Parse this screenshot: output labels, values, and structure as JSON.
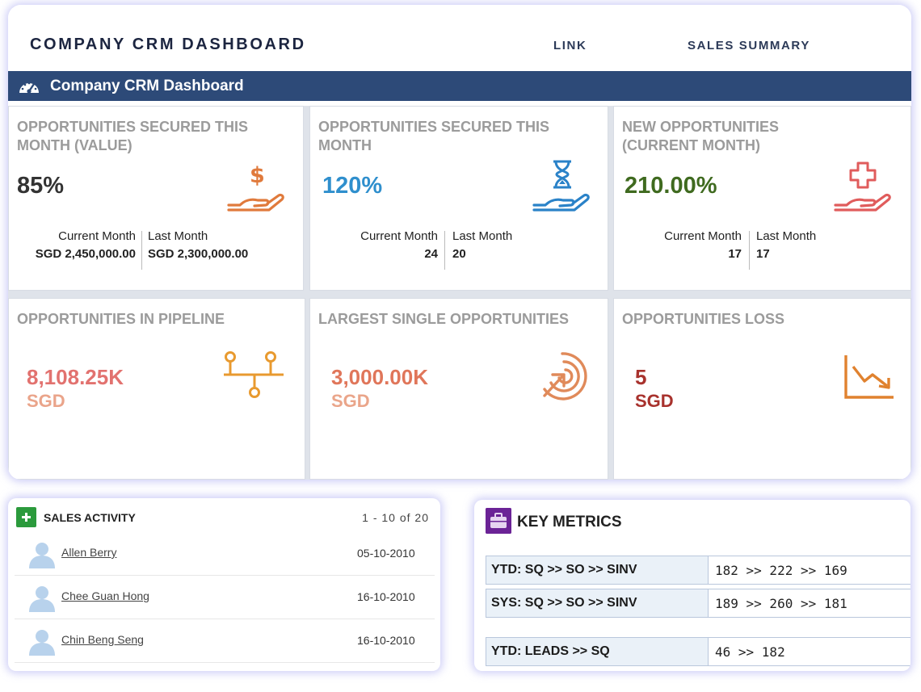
{
  "header": {
    "brand": "COMPANY CRM DASHBOARD",
    "nav": [
      "LINK",
      "SALES SUMMARY"
    ],
    "banner_title": "Company CRM Dashboard"
  },
  "cards_top": [
    {
      "title": "OPPORTUNITIES SECURED THIS MONTH (VALUE)",
      "value": "85%",
      "value_color": "#333333",
      "icon": "dollar-hand-icon",
      "current_label": "Current Month",
      "current_value": "SGD 2,450,000.00",
      "last_label": "Last Month",
      "last_value": "SGD 2,300,000.00"
    },
    {
      "title": "OPPORTUNITIES SECURED THIS MONTH",
      "value": "120%",
      "value_color": "#2f8fcd",
      "icon": "hourglass-hand-icon",
      "current_label": "Current Month",
      "current_value": "24",
      "last_label": "Last Month",
      "last_value": "20"
    },
    {
      "title": "NEW OPPORTUNITIES (CURRENT MONTH)",
      "value": "210.00%",
      "value_color": "#3f6a1f",
      "icon": "plus-hand-icon",
      "current_label": "Current Month",
      "current_value": "17",
      "last_label": "Last Month",
      "last_value": "17"
    }
  ],
  "cards_bottom": [
    {
      "title": "OPPORTUNITIES IN PIPELINE",
      "value": "8,108.25K",
      "unit": "SGD",
      "value_color": "#e2726f",
      "unit_color": "#eaa48a",
      "icon": "pipeline-icon"
    },
    {
      "title": "LARGEST SINGLE OPPORTUNITIES",
      "value": "3,000.00K",
      "unit": "SGD",
      "value_color": "#e0765a",
      "unit_color": "#eaa58a",
      "icon": "target-icon"
    },
    {
      "title": "OPPORTUNITIES LOSS",
      "value": "5",
      "unit": "SGD",
      "value_color": "#a8322d",
      "unit_color": "#a8322d",
      "icon": "decline-chart-icon"
    }
  ],
  "sales_activity": {
    "title": "SALES ACTIVITY",
    "pager": "1 - 10 of 20",
    "rows": [
      {
        "name": "Allen Berry",
        "date": "05-10-2010"
      },
      {
        "name": "Chee Guan Hong",
        "date": "16-10-2010"
      },
      {
        "name": "Chin Beng Seng",
        "date": "16-10-2010"
      }
    ]
  },
  "key_metrics": {
    "title": "KEY METRICS",
    "rows": [
      {
        "key": "YTD: SQ >> SO >> SINV",
        "value": "182 >> 222 >> 169"
      },
      {
        "key": "SYS: SQ >> SO >> SINV",
        "value": "189 >> 260 >> 181"
      },
      {
        "key": "YTD: LEADS >> SQ",
        "value": "46 >> 182"
      }
    ]
  },
  "colors": {
    "banner": "#2d4a78",
    "sales_icon": "#2b9a3c",
    "metrics_icon": "#6b2396"
  }
}
